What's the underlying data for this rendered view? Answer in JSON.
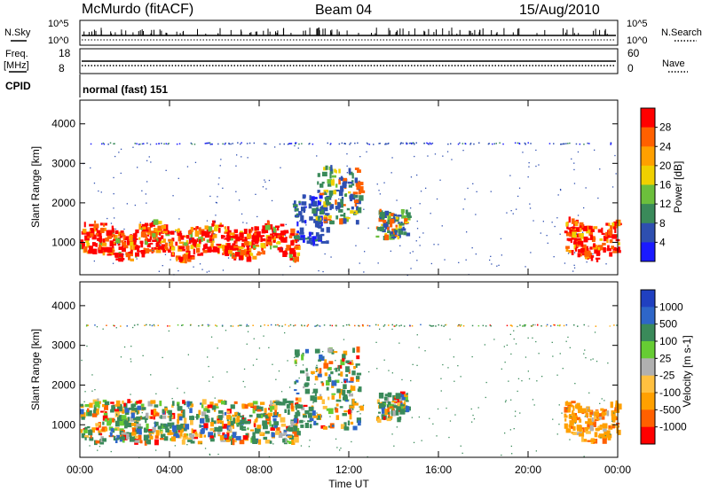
{
  "header": {
    "station": "McMurdo (fitACF)",
    "beam": "Beam 04",
    "date": "15/Aug/2010"
  },
  "sky_panel": {
    "left_label": "N.Sky",
    "right_label": "N.Search",
    "left_ticks": [
      "10^5",
      "10^0"
    ],
    "right_ticks": [
      "10^5",
      "10^0"
    ]
  },
  "freq_panel": {
    "left_label_1": "Freq.",
    "left_label_2": "[MHz]",
    "right_label": "Nave",
    "left_ticks": [
      "18",
      "8"
    ],
    "right_ticks": [
      "60",
      "0"
    ]
  },
  "cpid": {
    "label": "CPID",
    "value": "normal (fast) 151"
  },
  "colors": {
    "power_scale": [
      "#1a1aff",
      "#2e4fb0",
      "#3a8a5a",
      "#6cbf3c",
      "#f0d000",
      "#ffa000",
      "#ff6000",
      "#ff0000"
    ],
    "velocity_scale": [
      "#ff0000",
      "#ff6000",
      "#ffa000",
      "#ffc040",
      "#b0b0b0",
      "#66cc33",
      "#3a8a5a",
      "#2e66c8",
      "#2040c0"
    ]
  },
  "chart_data": [
    {
      "type": "heatmap",
      "name": "power",
      "ylabel": "Slant Range [km]",
      "ylim": [
        180,
        4600
      ],
      "yticks": [
        "1000",
        "2000",
        "3000",
        "4000"
      ],
      "xlim": [
        0,
        24
      ],
      "colorbar_label": "Power [dB]",
      "colorbar_ticks": [
        "4",
        "8",
        "12",
        "16",
        "20",
        "24",
        "28"
      ],
      "regions": [
        {
          "t0": 0.0,
          "t1": 9.7,
          "r0": 550,
          "r1": 1500,
          "level": "high"
        },
        {
          "t0": 9.5,
          "t1": 11.0,
          "r0": 900,
          "r1": 2200,
          "level": "low"
        },
        {
          "t0": 10.5,
          "t1": 12.5,
          "r0": 1500,
          "r1": 2900,
          "level": "mid"
        },
        {
          "t0": 13.2,
          "t1": 14.6,
          "r0": 1100,
          "r1": 1800,
          "level": "mid"
        },
        {
          "t0": 21.6,
          "t1": 24.0,
          "r0": 550,
          "r1": 1600,
          "level": "high"
        },
        {
          "t0": 0.0,
          "t1": 24.0,
          "r0": 3480,
          "r1": 3520,
          "level": "low"
        }
      ]
    },
    {
      "type": "heatmap",
      "name": "velocity",
      "ylabel": "Slant Range [km]",
      "xlabel": "Time UT",
      "ylim": [
        180,
        4600
      ],
      "yticks": [
        "1000",
        "2000",
        "3000",
        "4000"
      ],
      "xlim": [
        0,
        24
      ],
      "xticks": [
        "00:00",
        "04:00",
        "08:00",
        "12:00",
        "16:00",
        "20:00",
        "00:00"
      ],
      "colorbar_label": "Velocity [m s-1]",
      "colorbar_ticks": [
        "1000",
        "500",
        "100",
        "25",
        "-25",
        "-100",
        "-500",
        "-1000"
      ],
      "regions": [
        {
          "t0": 0.0,
          "t1": 9.7,
          "r0": 550,
          "r1": 1600,
          "level": "mixed"
        },
        {
          "t0": 9.5,
          "t1": 12.5,
          "r0": 900,
          "r1": 2900,
          "level": "mixed"
        },
        {
          "t0": 13.2,
          "t1": 14.6,
          "r0": 1100,
          "r1": 1800,
          "level": "mixed"
        },
        {
          "t0": 21.6,
          "t1": 24.0,
          "r0": 550,
          "r1": 1600,
          "level": "negative"
        },
        {
          "t0": 0.0,
          "t1": 24.0,
          "r0": 3480,
          "r1": 3520,
          "level": "mixed"
        }
      ]
    }
  ]
}
